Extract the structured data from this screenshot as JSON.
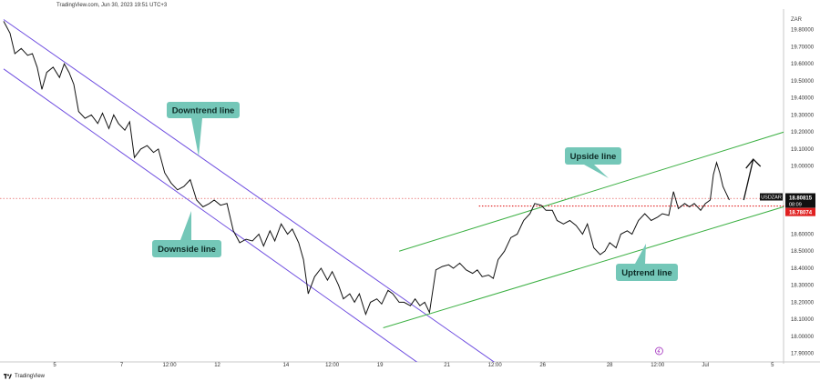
{
  "header": {
    "text": "TradingView.com, Jun 30, 2023 19:51 UTC+3"
  },
  "footer": {
    "brand": "TradingView"
  },
  "chart_data": {
    "type": "line",
    "symbol": "USDZAR",
    "currency_label": "ZAR",
    "ylim": [
      17.85,
      19.9
    ],
    "y_ticks": [
      {
        "value": 19.8,
        "label": "19.80000"
      },
      {
        "value": 19.7,
        "label": "19.70000"
      },
      {
        "value": 19.6,
        "label": "19.60000"
      },
      {
        "value": 19.5,
        "label": "19.50000"
      },
      {
        "value": 19.4,
        "label": "19.40000"
      },
      {
        "value": 19.3,
        "label": "19.30000"
      },
      {
        "value": 19.2,
        "label": "19.20000"
      },
      {
        "value": 19.1,
        "label": "19.10000"
      },
      {
        "value": 19.0,
        "label": "19.00000"
      },
      {
        "value": 18.6,
        "label": "18.60000"
      },
      {
        "value": 18.5,
        "label": "18.50000"
      },
      {
        "value": 18.4,
        "label": "18.40000"
      },
      {
        "value": 18.3,
        "label": "18.30000"
      },
      {
        "value": 18.2,
        "label": "18.20000"
      },
      {
        "value": 18.1,
        "label": "18.10000"
      },
      {
        "value": 18.0,
        "label": "18.00000"
      },
      {
        "value": 17.9,
        "label": "17.90000"
      }
    ],
    "xlim": [
      0,
      24.45
    ],
    "x_ticks": [
      {
        "x": 1.6,
        "label": "5"
      },
      {
        "x": 3.7,
        "label": "7"
      },
      {
        "x": 5.2,
        "label": "12:00"
      },
      {
        "x": 6.7,
        "label": "12"
      },
      {
        "x": 8.85,
        "label": "14"
      },
      {
        "x": 10.3,
        "label": "12:00"
      },
      {
        "x": 11.8,
        "label": "19"
      },
      {
        "x": 13.9,
        "label": "21"
      },
      {
        "x": 15.4,
        "label": "12:00"
      },
      {
        "x": 16.9,
        "label": "26"
      },
      {
        "x": 19.0,
        "label": "28"
      },
      {
        "x": 20.5,
        "label": "12:00"
      },
      {
        "x": 22.0,
        "label": "Jul"
      },
      {
        "x": 24.1,
        "label": "5"
      }
    ],
    "price_series": [
      [
        0.0,
        19.85
      ],
      [
        0.2,
        19.78
      ],
      [
        0.35,
        19.66
      ],
      [
        0.55,
        19.69
      ],
      [
        0.75,
        19.65
      ],
      [
        0.9,
        19.66
      ],
      [
        1.05,
        19.58
      ],
      [
        1.2,
        19.45
      ],
      [
        1.35,
        19.55
      ],
      [
        1.55,
        19.58
      ],
      [
        1.75,
        19.52
      ],
      [
        1.9,
        19.6
      ],
      [
        2.05,
        19.55
      ],
      [
        2.2,
        19.48
      ],
      [
        2.35,
        19.32
      ],
      [
        2.55,
        19.28
      ],
      [
        2.75,
        19.3
      ],
      [
        2.95,
        19.25
      ],
      [
        3.1,
        19.31
      ],
      [
        3.3,
        19.22
      ],
      [
        3.45,
        19.3
      ],
      [
        3.6,
        19.25
      ],
      [
        3.8,
        19.21
      ],
      [
        3.95,
        19.26
      ],
      [
        4.1,
        19.05
      ],
      [
        4.3,
        19.1
      ],
      [
        4.5,
        19.12
      ],
      [
        4.7,
        19.08
      ],
      [
        4.85,
        19.1
      ],
      [
        5.05,
        18.96
      ],
      [
        5.25,
        18.9
      ],
      [
        5.45,
        18.86
      ],
      [
        5.65,
        18.88
      ],
      [
        5.85,
        18.92
      ],
      [
        6.05,
        18.8
      ],
      [
        6.25,
        18.76
      ],
      [
        6.45,
        18.78
      ],
      [
        6.6,
        18.8
      ],
      [
        6.8,
        18.77
      ],
      [
        7.0,
        18.78
      ],
      [
        7.2,
        18.62
      ],
      [
        7.4,
        18.55
      ],
      [
        7.6,
        18.57
      ],
      [
        7.8,
        18.56
      ],
      [
        8.0,
        18.6
      ],
      [
        8.15,
        18.53
      ],
      [
        8.35,
        18.62
      ],
      [
        8.5,
        18.56
      ],
      [
        8.7,
        18.66
      ],
      [
        8.9,
        18.6
      ],
      [
        9.05,
        18.63
      ],
      [
        9.25,
        18.55
      ],
      [
        9.4,
        18.45
      ],
      [
        9.55,
        18.25
      ],
      [
        9.75,
        18.35
      ],
      [
        9.95,
        18.4
      ],
      [
        10.15,
        18.33
      ],
      [
        10.3,
        18.38
      ],
      [
        10.5,
        18.3
      ],
      [
        10.65,
        18.22
      ],
      [
        10.85,
        18.25
      ],
      [
        11.0,
        18.2
      ],
      [
        11.15,
        18.25
      ],
      [
        11.35,
        18.13
      ],
      [
        11.5,
        18.2
      ],
      [
        11.7,
        18.22
      ],
      [
        11.85,
        18.19
      ],
      [
        12.05,
        18.27
      ],
      [
        12.2,
        18.25
      ],
      [
        12.4,
        18.2
      ],
      [
        12.55,
        18.2
      ],
      [
        12.75,
        18.18
      ],
      [
        12.9,
        18.22
      ],
      [
        13.05,
        18.18
      ],
      [
        13.2,
        18.2
      ],
      [
        13.35,
        18.14
      ],
      [
        13.55,
        18.39
      ],
      [
        13.75,
        18.41
      ],
      [
        13.95,
        18.42
      ],
      [
        14.1,
        18.4
      ],
      [
        14.3,
        18.43
      ],
      [
        14.5,
        18.39
      ],
      [
        14.7,
        18.37
      ],
      [
        14.85,
        18.39
      ],
      [
        15.0,
        18.35
      ],
      [
        15.2,
        18.36
      ],
      [
        15.35,
        18.34
      ],
      [
        15.5,
        18.45
      ],
      [
        15.7,
        18.5
      ],
      [
        15.9,
        18.58
      ],
      [
        16.1,
        18.6
      ],
      [
        16.3,
        18.68
      ],
      [
        16.5,
        18.72
      ],
      [
        16.65,
        18.78
      ],
      [
        16.85,
        18.77
      ],
      [
        17.0,
        18.74
      ],
      [
        17.2,
        18.74
      ],
      [
        17.35,
        18.68
      ],
      [
        17.55,
        18.66
      ],
      [
        17.75,
        18.68
      ],
      [
        17.95,
        18.65
      ],
      [
        18.15,
        18.6
      ],
      [
        18.3,
        18.66
      ],
      [
        18.5,
        18.52
      ],
      [
        18.7,
        18.48
      ],
      [
        18.85,
        18.5
      ],
      [
        19.0,
        18.55
      ],
      [
        19.2,
        18.52
      ],
      [
        19.35,
        18.6
      ],
      [
        19.55,
        18.62
      ],
      [
        19.7,
        18.6
      ],
      [
        19.9,
        18.68
      ],
      [
        20.1,
        18.72
      ],
      [
        20.3,
        18.68
      ],
      [
        20.5,
        18.7
      ],
      [
        20.65,
        18.72
      ],
      [
        20.85,
        18.71
      ],
      [
        21.0,
        18.85
      ],
      [
        21.15,
        18.75
      ],
      [
        21.35,
        18.78
      ],
      [
        21.5,
        18.76
      ],
      [
        21.65,
        18.78
      ],
      [
        21.85,
        18.74
      ],
      [
        22.0,
        18.78
      ],
      [
        22.15,
        18.8
      ],
      [
        22.25,
        18.95
      ],
      [
        22.35,
        19.02
      ],
      [
        22.45,
        18.96
      ],
      [
        22.55,
        18.88
      ],
      [
        22.65,
        18.84
      ],
      [
        22.75,
        18.8
      ]
    ],
    "current_price": {
      "value": 18.80815,
      "label": "18.80815",
      "time_label": "08:09",
      "symbol_label": "USDZAR",
      "color": "#111111"
    },
    "level": {
      "value": 18.78074,
      "label": "18.78074",
      "color": "#e02020"
    },
    "lines": [
      {
        "name": "downtrend-line",
        "color": "#6f4ee0",
        "from": [
          0.0,
          19.86
        ],
        "to": [
          15.6,
          17.82
        ]
      },
      {
        "name": "downside-line",
        "color": "#6f4ee0",
        "from": [
          0.0,
          19.57
        ],
        "to": [
          13.1,
          17.83
        ]
      },
      {
        "name": "upside-line",
        "color": "#3cb043",
        "from": [
          12.4,
          18.5
        ],
        "to": [
          25.5,
          19.26
        ]
      },
      {
        "name": "uptrend-line",
        "color": "#3cb043",
        "from": [
          11.9,
          18.05
        ],
        "to": [
          25.5,
          18.82
        ]
      }
    ],
    "horizontal_line": {
      "value": 18.81,
      "color": "#e04040"
    },
    "resistance_segment": {
      "value": 18.765,
      "from": 14.9,
      "to": 25.2,
      "color": "#e02020"
    },
    "arrow": {
      "from": [
        23.2,
        18.8
      ],
      "to": [
        23.5,
        19.04
      ],
      "color": "#111111"
    },
    "annotations": [
      {
        "text": "Downtrend line"
      },
      {
        "text": "Downside line"
      },
      {
        "text": "Upside line"
      },
      {
        "text": "Uptrend line"
      }
    ],
    "annotation_color": "#74c7b8",
    "grid": false
  }
}
